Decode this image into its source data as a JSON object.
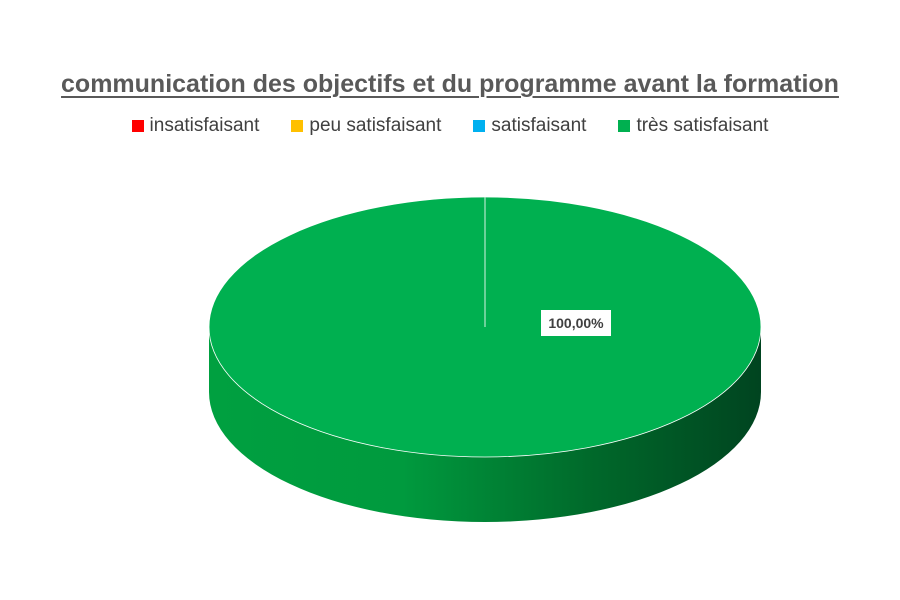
{
  "chart_data": {
    "type": "pie",
    "title": "communication des objectifs et du programme avant la formation",
    "categories": [
      "insatisfaisant",
      "peu satisfaisant",
      "satisfaisant",
      "très satisfaisant"
    ],
    "values": [
      0,
      0,
      0,
      1
    ],
    "colors": [
      "#ff0000",
      "#ffc000",
      "#00b0f0",
      "#00b050"
    ],
    "data_labels": [
      "100,00%"
    ],
    "legend_position": "top",
    "style": "3d"
  }
}
